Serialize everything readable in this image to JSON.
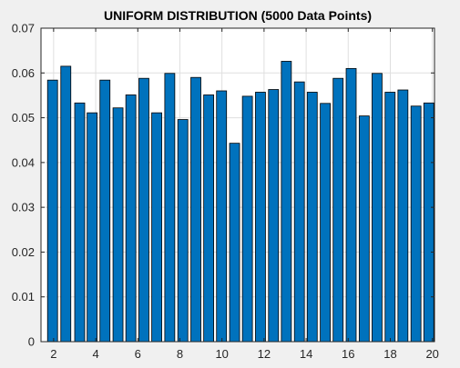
{
  "colors": {
    "figure_background": "#f0f0f0",
    "axes_background": "#ffffff",
    "bar_fill": "#0072bd",
    "bar_edge": "#000000",
    "grid": "#dfdfdf",
    "axis": "#262626"
  },
  "chart_data": {
    "type": "bar",
    "title": "UNIFORM DISTRIBUTION (5000 Data Points)",
    "xlabel": "",
    "ylabel": "",
    "xlim": [
      1.4,
      20.1
    ],
    "ylim": [
      0,
      0.07
    ],
    "grid": true,
    "xticks": [
      2,
      4,
      6,
      8,
      10,
      12,
      14,
      16,
      18,
      20
    ],
    "xtick_labels": [
      "2",
      "4",
      "6",
      "8",
      "10",
      "12",
      "14",
      "16",
      "18",
      "20"
    ],
    "yticks": [
      0,
      0.01,
      0.02,
      0.03,
      0.04,
      0.05,
      0.06,
      0.07
    ],
    "ytick_labels": [
      "0",
      "0.01",
      "0.02",
      "0.03",
      "0.04",
      "0.05",
      "0.06",
      "0.07"
    ],
    "bar_width": 0.475,
    "x": [
      1.95,
      2.58,
      3.24,
      3.83,
      4.44,
      5.06,
      5.67,
      6.29,
      6.9,
      7.52,
      8.14,
      8.76,
      9.37,
      9.98,
      10.6,
      11.21,
      11.83,
      12.45,
      13.06,
      13.68,
      14.29,
      14.91,
      15.52,
      16.14,
      16.76,
      17.37,
      17.99,
      18.6,
      19.22,
      19.83
    ],
    "values": [
      0.0584,
      0.0615,
      0.0533,
      0.0511,
      0.0584,
      0.0522,
      0.0551,
      0.0588,
      0.0511,
      0.0599,
      0.0496,
      0.059,
      0.0551,
      0.056,
      0.0443,
      0.0548,
      0.0557,
      0.0563,
      0.0626,
      0.058,
      0.0557,
      0.0532,
      0.0588,
      0.061,
      0.0504,
      0.0599,
      0.0557,
      0.0562,
      0.0526,
      0.0533
    ]
  }
}
